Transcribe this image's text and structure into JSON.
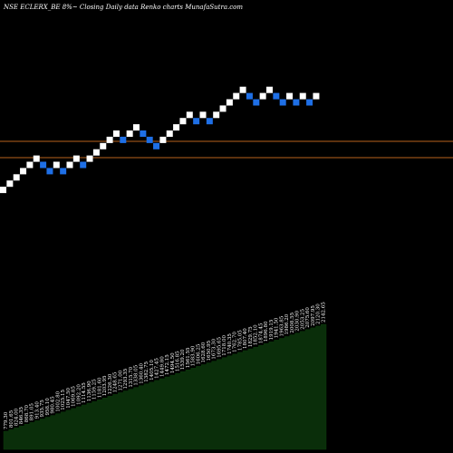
{
  "chart_data": {
    "type": "renko",
    "title": "NSE ECLERX_BE 8%~  Closing Daily data  Renko  charts MunafaSutra.com",
    "colors": {
      "background": "#000000",
      "up_brick": "#ffffff",
      "down_brick": "#1e6fe6",
      "level_line": "#b8621b",
      "volume_area": "#0a2e0a",
      "volume_outline": "#0d3a0d",
      "text": "#ffffff"
    },
    "bricks": [
      {
        "d": "up",
        "v": 1
      },
      {
        "d": "up",
        "v": 2
      },
      {
        "d": "up",
        "v": 3
      },
      {
        "d": "up",
        "v": 4
      },
      {
        "d": "up",
        "v": 5
      },
      {
        "d": "up",
        "v": 6
      },
      {
        "d": "down",
        "v": 5
      },
      {
        "d": "down",
        "v": 4
      },
      {
        "d": "up",
        "v": 5
      },
      {
        "d": "down",
        "v": 4
      },
      {
        "d": "up",
        "v": 5
      },
      {
        "d": "up",
        "v": 6
      },
      {
        "d": "down",
        "v": 5
      },
      {
        "d": "up",
        "v": 6
      },
      {
        "d": "up",
        "v": 7
      },
      {
        "d": "up",
        "v": 8
      },
      {
        "d": "up",
        "v": 9
      },
      {
        "d": "up",
        "v": 10
      },
      {
        "d": "down",
        "v": 9
      },
      {
        "d": "up",
        "v": 10
      },
      {
        "d": "up",
        "v": 11
      },
      {
        "d": "down",
        "v": 10
      },
      {
        "d": "down",
        "v": 9
      },
      {
        "d": "down",
        "v": 8
      },
      {
        "d": "up",
        "v": 9
      },
      {
        "d": "up",
        "v": 10
      },
      {
        "d": "up",
        "v": 11
      },
      {
        "d": "up",
        "v": 12
      },
      {
        "d": "up",
        "v": 13
      },
      {
        "d": "down",
        "v": 12
      },
      {
        "d": "up",
        "v": 13
      },
      {
        "d": "down",
        "v": 12
      },
      {
        "d": "up",
        "v": 13
      },
      {
        "d": "up",
        "v": 14
      },
      {
        "d": "up",
        "v": 15
      },
      {
        "d": "up",
        "v": 16
      },
      {
        "d": "up",
        "v": 17
      },
      {
        "d": "down",
        "v": 16
      },
      {
        "d": "down",
        "v": 15
      },
      {
        "d": "up",
        "v": 16
      },
      {
        "d": "up",
        "v": 17
      },
      {
        "d": "down",
        "v": 16
      },
      {
        "d": "down",
        "v": 15
      },
      {
        "d": "up",
        "v": 16
      },
      {
        "d": "down",
        "v": 15
      },
      {
        "d": "up",
        "v": 16
      },
      {
        "d": "down",
        "v": 15
      },
      {
        "d": "up",
        "v": 16
      }
    ],
    "level_lines": [
      1900,
      1690
    ],
    "volume_labels": [
      "779.30",
      "801.65",
      "824.00",
      "846.35",
      "868.70",
      "891.05",
      "913.40",
      "935.75",
      "958.10",
      "980.45",
      "1002.80",
      "1025.15",
      "1047.50",
      "1069.85",
      "1092.20",
      "1114.55",
      "1136.90",
      "1159.25",
      "1181.60",
      "1203.95",
      "1226.30",
      "1248.65",
      "1271.00",
      "1293.35",
      "1315.70",
      "1338.05",
      "1360.40",
      "1382.75",
      "1405.10",
      "1427.45",
      "1449.80",
      "1472.15",
      "1494.50",
      "1516.85",
      "1539.20",
      "1561.55",
      "1583.90",
      "1606.25",
      "1628.60",
      "1650.95",
      "1673.30",
      "1695.65",
      "1718.00",
      "1740.35",
      "1762.70",
      "1785.05",
      "1807.40",
      "1829.75",
      "1852.10",
      "1874.45",
      "1896.80",
      "1919.15",
      "1941.50",
      "1963.85",
      "1986.20",
      "2008.55",
      "2030.90",
      "2053.25",
      "2075.60",
      "2097.95",
      "2120.30",
      "2142.65"
    ]
  }
}
